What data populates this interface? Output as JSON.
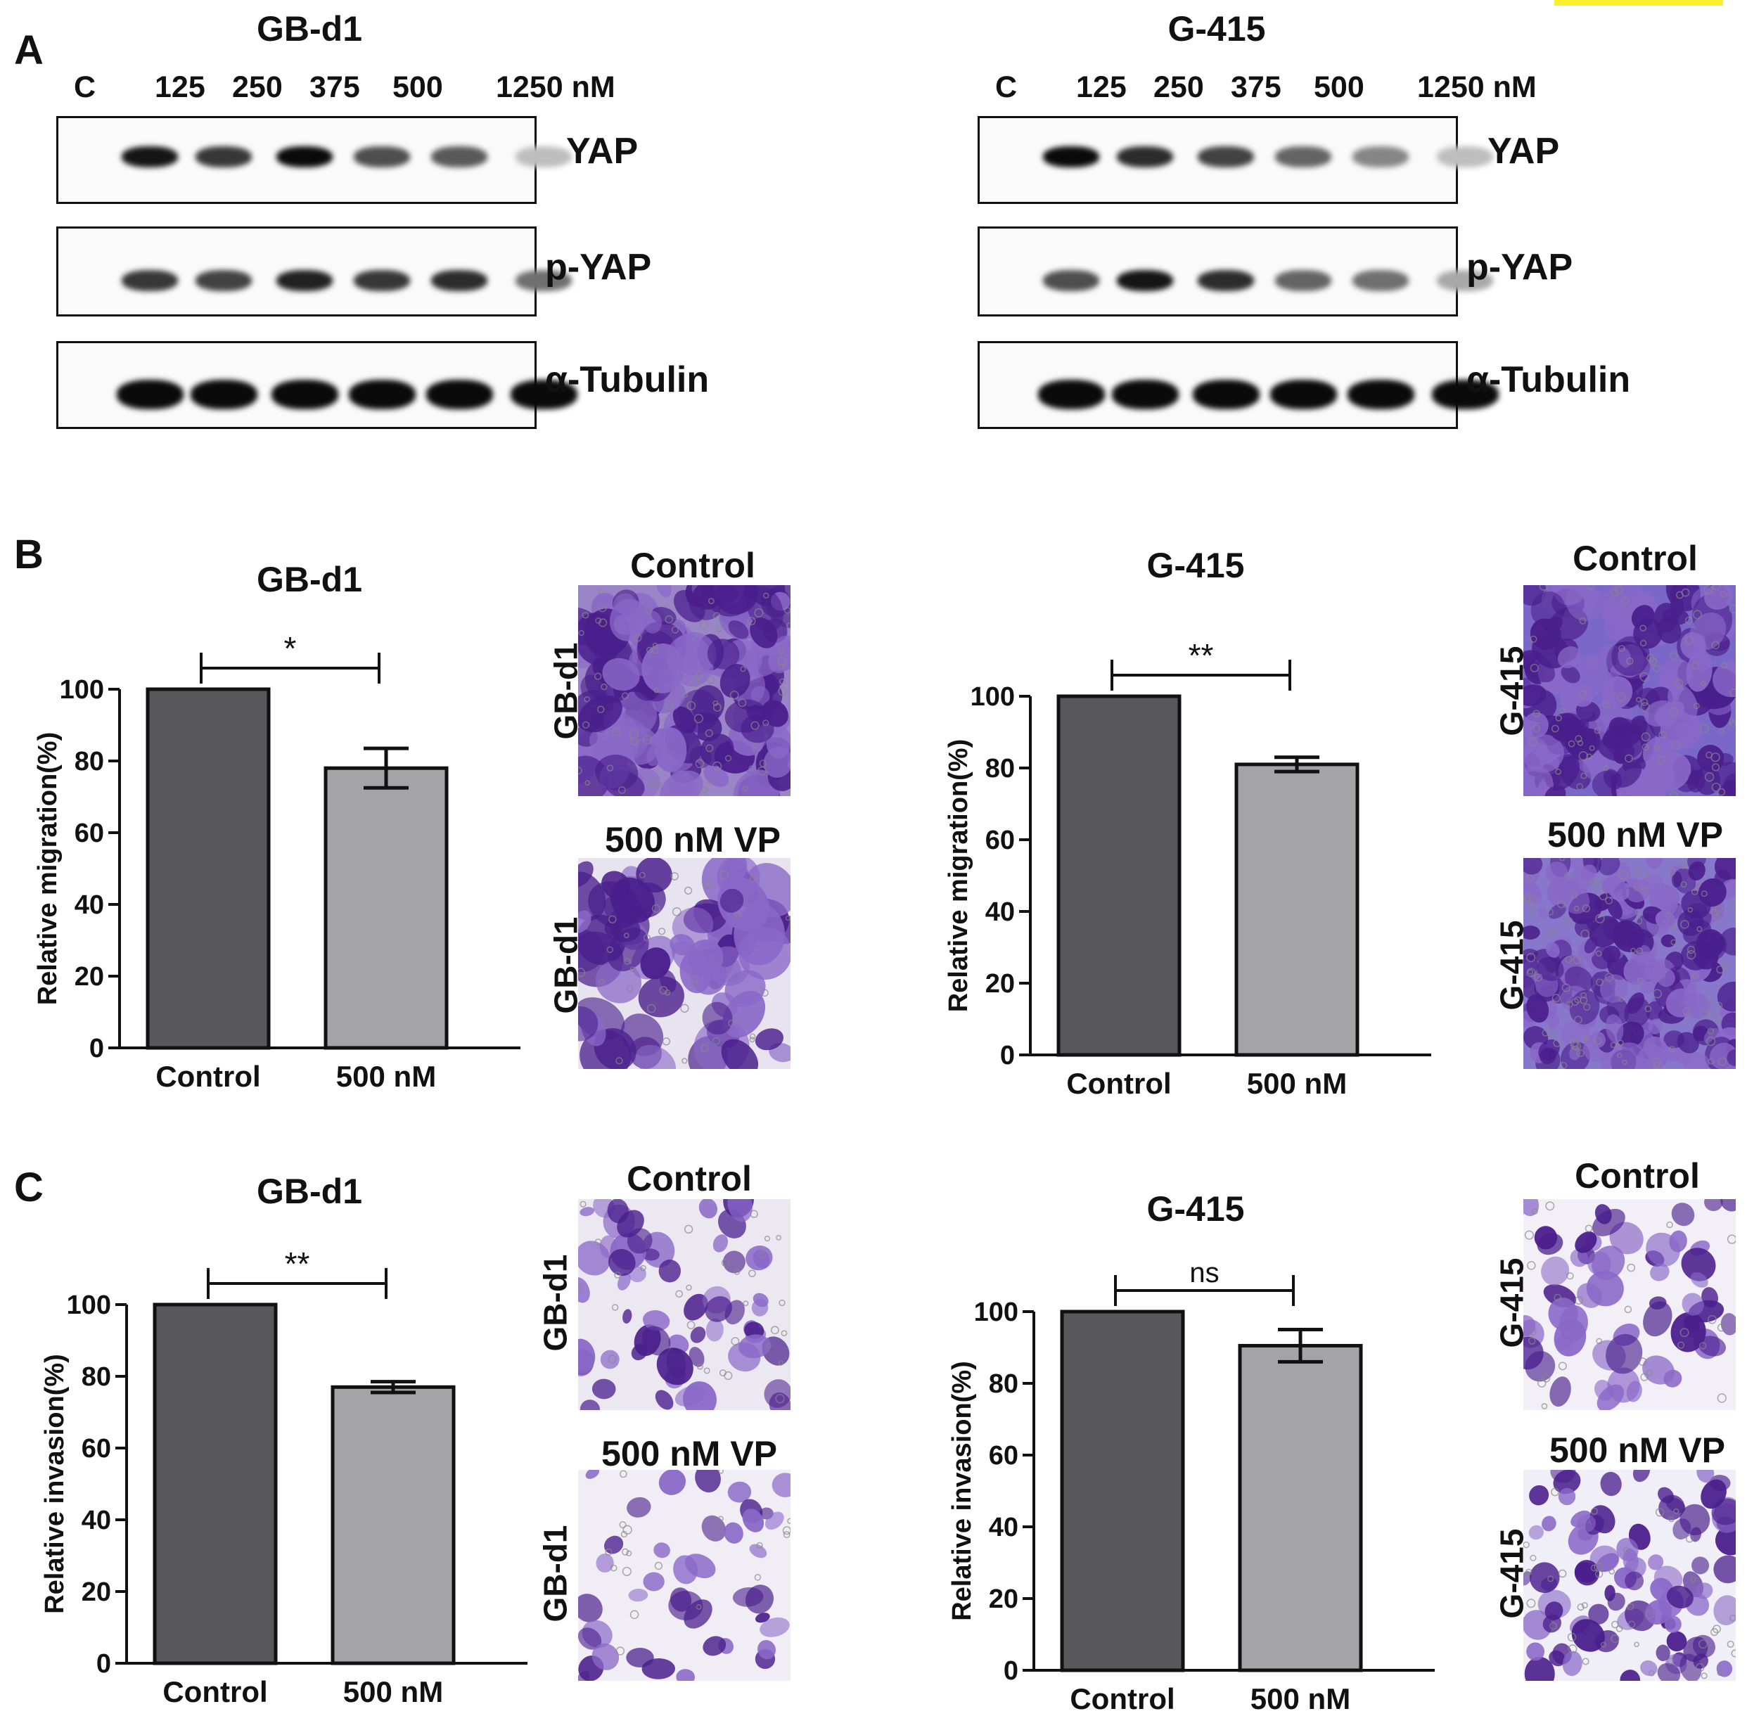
{
  "panels": {
    "A": "A",
    "B": "B",
    "C": "C"
  },
  "blot": {
    "left": {
      "title": "GB-d1",
      "lane_labels": [
        "C",
        "125",
        "250",
        "375",
        "500",
        "1250 nM"
      ],
      "rows": [
        {
          "label": "YAP",
          "intensity": [
            0.95,
            0.8,
            1.0,
            0.7,
            0.65,
            0.2
          ]
        },
        {
          "label": "p-YAP",
          "intensity": [
            0.8,
            0.75,
            0.9,
            0.8,
            0.85,
            0.55
          ]
        },
        {
          "label": "α-Tubulin",
          "intensity": [
            1.0,
            1.0,
            1.0,
            1.0,
            1.0,
            1.0
          ]
        }
      ]
    },
    "right": {
      "title": "G-415",
      "lane_labels": [
        "C",
        "125",
        "250",
        "375",
        "500",
        "1250 nM"
      ],
      "rows": [
        {
          "label": "YAP",
          "intensity": [
            1.0,
            0.85,
            0.75,
            0.6,
            0.45,
            0.2
          ]
        },
        {
          "label": "p-YAP",
          "intensity": [
            0.7,
            0.95,
            0.85,
            0.6,
            0.55,
            0.3
          ]
        },
        {
          "label": "α-Tubulin",
          "intensity": [
            1.0,
            1.0,
            1.0,
            1.0,
            1.0,
            1.0
          ]
        }
      ]
    }
  },
  "micrographs": {
    "control_label": "Control",
    "treated_label": "500 nM VP",
    "B_left_side": "GB-d1",
    "B_right_side": "G-415",
    "C_left_side": "GB-d1",
    "C_right_side": "G-415"
  },
  "colors": {
    "control_bar": "#58585a",
    "treated_bar": "#a4a4a6",
    "stain_dark": "#4a1e8c",
    "stain_light": "#8a68c8"
  },
  "chart_data": [
    {
      "type": "bar",
      "panel": "B",
      "title": "GB-d1",
      "ylabel": "Relative migration(%)",
      "categories": [
        "Control",
        "500 nM"
      ],
      "values": [
        100,
        78
      ],
      "errors": [
        0,
        5.5
      ],
      "ylim": [
        0,
        100
      ],
      "yticks": [
        "0",
        "20",
        "40",
        "60",
        "80",
        "100"
      ],
      "significance": "*"
    },
    {
      "type": "bar",
      "panel": "B",
      "title": "G-415",
      "ylabel": "Relative migration(%)",
      "categories": [
        "Control",
        "500 nM"
      ],
      "values": [
        100,
        81
      ],
      "errors": [
        0,
        2
      ],
      "ylim": [
        0,
        100
      ],
      "yticks": [
        "0",
        "20",
        "40",
        "60",
        "80",
        "100"
      ],
      "significance": "**"
    },
    {
      "type": "bar",
      "panel": "C",
      "title": "GB-d1",
      "ylabel": "Relative invasion(%)",
      "categories": [
        "Control",
        "500 nM"
      ],
      "values": [
        100,
        77
      ],
      "errors": [
        0,
        1.5
      ],
      "ylim": [
        0,
        100
      ],
      "yticks": [
        "0",
        "20",
        "40",
        "60",
        "80",
        "100"
      ],
      "significance": "**"
    },
    {
      "type": "bar",
      "panel": "C",
      "title": "G-415",
      "ylabel": "Relative invasion(%)",
      "categories": [
        "Control",
        "500 nM"
      ],
      "values": [
        100,
        90.5
      ],
      "errors": [
        0,
        4.5
      ],
      "ylim": [
        0,
        100
      ],
      "yticks": [
        "0",
        "20",
        "40",
        "60",
        "80",
        "100"
      ],
      "significance": "ns"
    }
  ]
}
